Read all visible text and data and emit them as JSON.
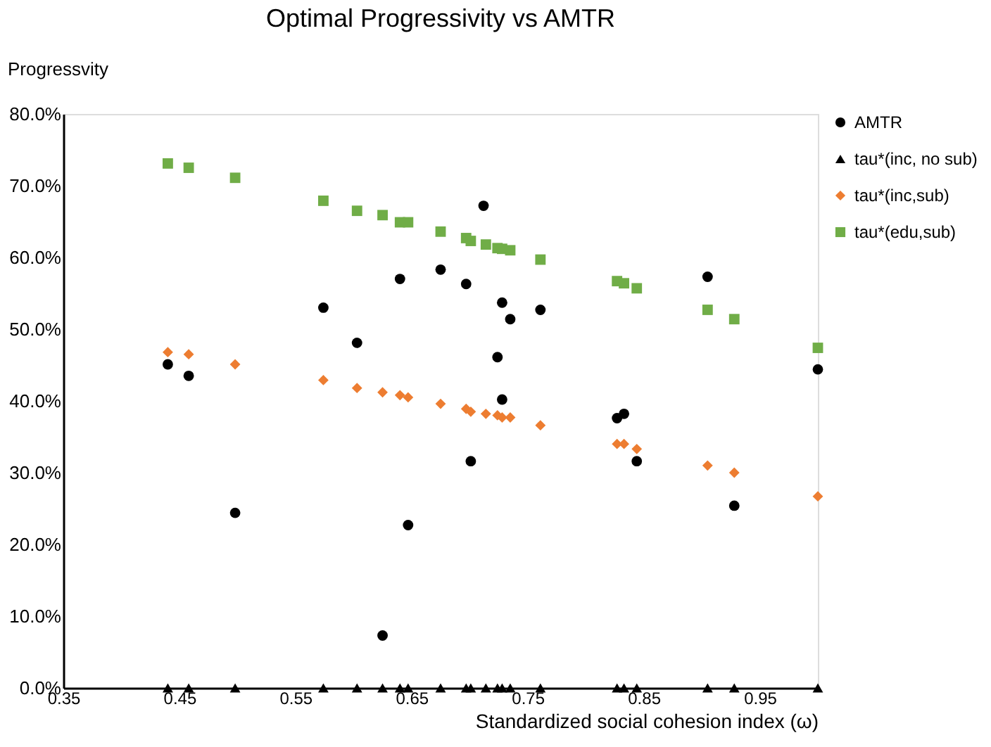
{
  "chart_data": {
    "type": "scatter",
    "title": "Optimal Progressivity vs AMTR",
    "xlabel": "Standardized social cohesion index (ω)",
    "ylabel": "Progressvity",
    "xlim": [
      0.35,
      1.0
    ],
    "xticks": [
      0.35,
      0.45,
      0.55,
      0.65,
      0.75,
      0.85,
      0.95
    ],
    "ylim": [
      0,
      80
    ],
    "yticks": [
      {
        "value": 0,
        "label": "0.0%"
      },
      {
        "value": 10,
        "label": "10.0%"
      },
      {
        "value": 20,
        "label": "20.0%"
      },
      {
        "value": 30,
        "label": "30.0%"
      },
      {
        "value": 40,
        "label": "40.0%"
      },
      {
        "value": 50,
        "label": "50.0%"
      },
      {
        "value": 60,
        "label": "60.0%"
      },
      {
        "value": 70,
        "label": "70.0%"
      },
      {
        "value": 80,
        "label": "80.0%"
      }
    ],
    "x": [
      0.44,
      0.458,
      0.498,
      0.574,
      0.603,
      0.625,
      0.64,
      0.647,
      0.675,
      0.697,
      0.701,
      0.714,
      0.724,
      0.728,
      0.735,
      0.761,
      0.827,
      0.833,
      0.844,
      0.905,
      0.928,
      1.0
    ],
    "grid": false,
    "legend": "right",
    "series": [
      {
        "name": "AMTR",
        "color": "#000000",
        "marker": "circle",
        "x": [
          0.44,
          0.458,
          0.498,
          0.574,
          0.603,
          0.625,
          0.64,
          0.647,
          0.675,
          0.697,
          0.701,
          0.712,
          0.724,
          0.728,
          0.728,
          0.735,
          0.761,
          0.827,
          0.833,
          0.844,
          0.905,
          0.928,
          1.0
        ],
        "values": [
          45.1,
          43.5,
          24.4,
          53.0,
          48.1,
          7.3,
          57.0,
          22.7,
          58.3,
          56.3,
          31.6,
          67.2,
          46.1,
          53.7,
          40.2,
          51.4,
          52.7,
          37.6,
          38.2,
          31.6,
          57.3,
          25.4,
          44.4
        ]
      },
      {
        "name": "tau*(inc, no sub)",
        "color": "#000000",
        "marker": "triangle",
        "values": [
          0,
          0,
          0,
          0,
          0,
          0,
          0,
          0,
          0,
          0,
          0,
          0,
          0,
          0,
          0,
          0,
          0,
          0,
          0,
          0,
          0,
          0
        ]
      },
      {
        "name": "tau*(inc,sub)",
        "color": "#ed7d31",
        "marker": "diamond",
        "values": [
          46.8,
          46.5,
          45.1,
          42.9,
          41.8,
          41.2,
          40.8,
          40.5,
          39.6,
          38.9,
          38.5,
          38.2,
          38.0,
          37.7,
          37.7,
          36.6,
          34.0,
          34.0,
          33.3,
          31.0,
          30.0,
          26.7
        ]
      },
      {
        "name": "tau*(edu,sub)",
        "color": "#70ad47",
        "marker": "square",
        "values": [
          73.1,
          72.5,
          71.1,
          67.9,
          66.5,
          65.9,
          64.9,
          64.9,
          63.6,
          62.7,
          62.3,
          61.8,
          61.3,
          61.2,
          61.0,
          59.7,
          56.7,
          56.4,
          55.7,
          52.7,
          51.4,
          47.4
        ]
      }
    ]
  }
}
